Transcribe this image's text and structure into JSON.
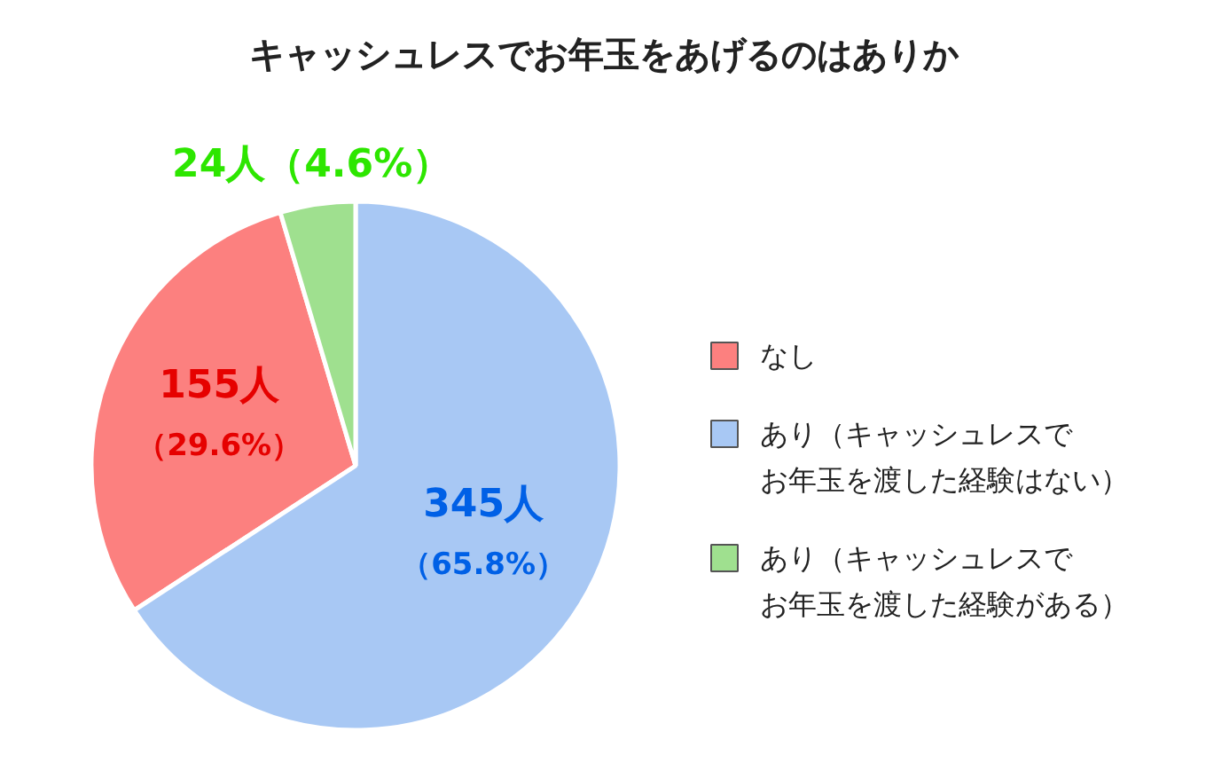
{
  "chart_data": {
    "type": "pie",
    "title": "キャッシュレスでお年玉をあげるのはありか",
    "categories": [
      "なし",
      "あり（キャッシュレスでお年玉を渡した経験はない）",
      "あり（キャッシュレスでお年玉を渡した経験がある）"
    ],
    "values": [
      29.6,
      65.8,
      4.6
    ],
    "colors": [
      "#fc807f",
      "#a8c8f4",
      "#9fe08f"
    ],
    "value_labels": [
      [
        "155人",
        "（29.6%）"
      ],
      [
        "345人",
        "（65.8%）"
      ],
      [
        "24人（4.6%）"
      ]
    ],
    "legend": "right"
  }
}
